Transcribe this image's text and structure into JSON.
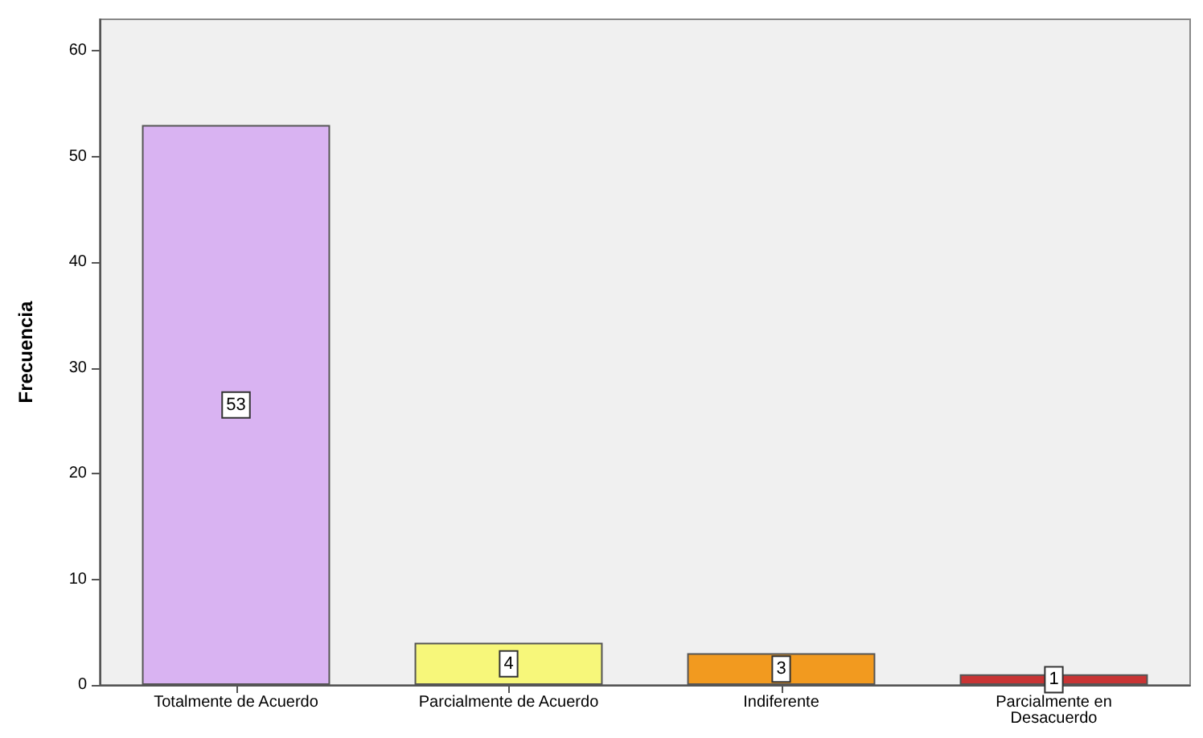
{
  "chart_data": {
    "type": "bar",
    "ylabel": "Frecuencia",
    "categories": [
      "Totalmente de Acuerdo",
      "Parcialmente de Acuerdo",
      "Indiferente",
      "Parcialmente en\nDesacuerdo"
    ],
    "values": [
      53,
      4,
      3,
      1
    ],
    "colors": [
      "#d9b3f2",
      "#f7f77a",
      "#f29a1f",
      "#c93434"
    ],
    "ylim": [
      0,
      63
    ],
    "yticks": [
      0,
      10,
      20,
      30,
      40,
      50,
      60
    ],
    "grid": false,
    "data_labels": true
  }
}
